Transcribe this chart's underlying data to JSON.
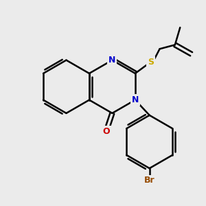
{
  "bg_color": "#ebebeb",
  "bond_color": "#000000",
  "N_color": "#0000cc",
  "O_color": "#cc0000",
  "S_color": "#ccaa00",
  "Br_color": "#964B00",
  "bond_width": 1.8,
  "figsize": [
    3.0,
    3.0
  ],
  "dpi": 100,
  "xlim": [
    0,
    10
  ],
  "ylim": [
    0,
    10
  ]
}
